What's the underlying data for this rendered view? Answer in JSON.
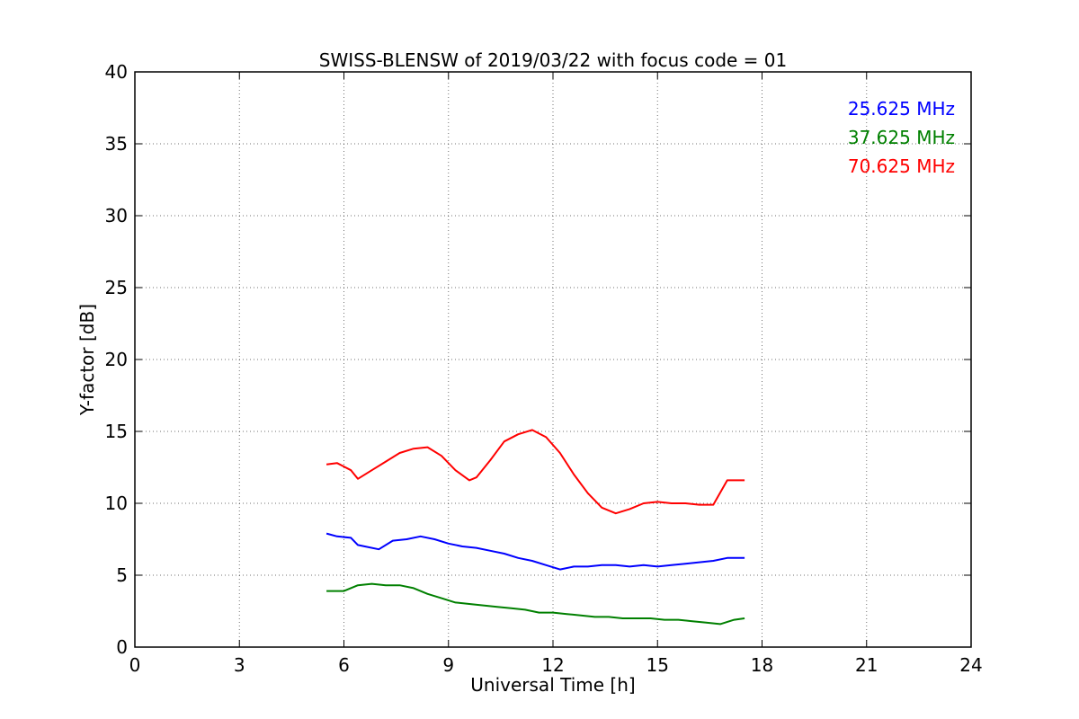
{
  "chart_data": {
    "type": "line",
    "title": "SWISS-BLENSW of 2019/03/22 with focus code = 01",
    "xlabel": "Universal Time [h]",
    "ylabel": "Y-factor [dB]",
    "xlim": [
      0,
      24
    ],
    "ylim": [
      0,
      40
    ],
    "xticks": [
      0,
      3,
      6,
      9,
      12,
      15,
      18,
      21,
      24
    ],
    "yticks": [
      0,
      5,
      10,
      15,
      20,
      25,
      30,
      35,
      40
    ],
    "grid": true,
    "legend_position": "top-right",
    "series": [
      {
        "name": "25.625 MHz",
        "color": "#0000ff",
        "x": [
          5.5,
          5.8,
          6.2,
          6.4,
          6.6,
          7.0,
          7.4,
          7.8,
          8.2,
          8.6,
          9.0,
          9.4,
          9.8,
          10.2,
          10.6,
          11.0,
          11.4,
          11.8,
          12.2,
          12.6,
          13.0,
          13.4,
          13.8,
          14.2,
          14.6,
          15.0,
          15.4,
          15.8,
          16.2,
          16.6,
          17.0,
          17.5
        ],
        "y": [
          7.9,
          7.7,
          7.6,
          7.1,
          7.0,
          6.8,
          7.4,
          7.5,
          7.7,
          7.5,
          7.2,
          7.0,
          6.9,
          6.7,
          6.5,
          6.2,
          6.0,
          5.7,
          5.4,
          5.6,
          5.6,
          5.7,
          5.7,
          5.6,
          5.7,
          5.6,
          5.7,
          5.8,
          5.9,
          6.0,
          6.2,
          6.2
        ]
      },
      {
        "name": "37.625 MHz",
        "color": "#008000",
        "x": [
          5.5,
          6.0,
          6.4,
          6.8,
          7.2,
          7.6,
          8.0,
          8.4,
          8.8,
          9.2,
          9.6,
          10.0,
          10.4,
          10.8,
          11.2,
          11.6,
          12.0,
          12.4,
          12.8,
          13.2,
          13.6,
          14.0,
          14.4,
          14.8,
          15.2,
          15.6,
          16.0,
          16.4,
          16.8,
          17.2,
          17.5
        ],
        "y": [
          3.9,
          3.9,
          4.3,
          4.4,
          4.3,
          4.3,
          4.1,
          3.7,
          3.4,
          3.1,
          3.0,
          2.9,
          2.8,
          2.7,
          2.6,
          2.4,
          2.4,
          2.3,
          2.2,
          2.1,
          2.1,
          2.0,
          2.0,
          2.0,
          1.9,
          1.9,
          1.8,
          1.7,
          1.6,
          1.9,
          2.0
        ]
      },
      {
        "name": "70.625 MHz",
        "color": "#ff0000",
        "x": [
          5.5,
          5.8,
          6.2,
          6.4,
          6.8,
          7.2,
          7.6,
          8.0,
          8.4,
          8.8,
          9.2,
          9.6,
          9.8,
          10.2,
          10.6,
          11.0,
          11.4,
          11.8,
          12.2,
          12.6,
          13.0,
          13.4,
          13.8,
          14.2,
          14.6,
          15.0,
          15.4,
          15.8,
          16.2,
          16.6,
          17.0,
          17.5
        ],
        "y": [
          12.7,
          12.8,
          12.3,
          11.7,
          12.3,
          12.9,
          13.5,
          13.8,
          13.9,
          13.3,
          12.3,
          11.6,
          11.8,
          13.0,
          14.3,
          14.8,
          15.1,
          14.6,
          13.5,
          12.0,
          10.7,
          9.7,
          9.3,
          9.6,
          10.0,
          10.1,
          10.0,
          10.0,
          9.9,
          9.9,
          11.6,
          11.6
        ]
      }
    ]
  }
}
